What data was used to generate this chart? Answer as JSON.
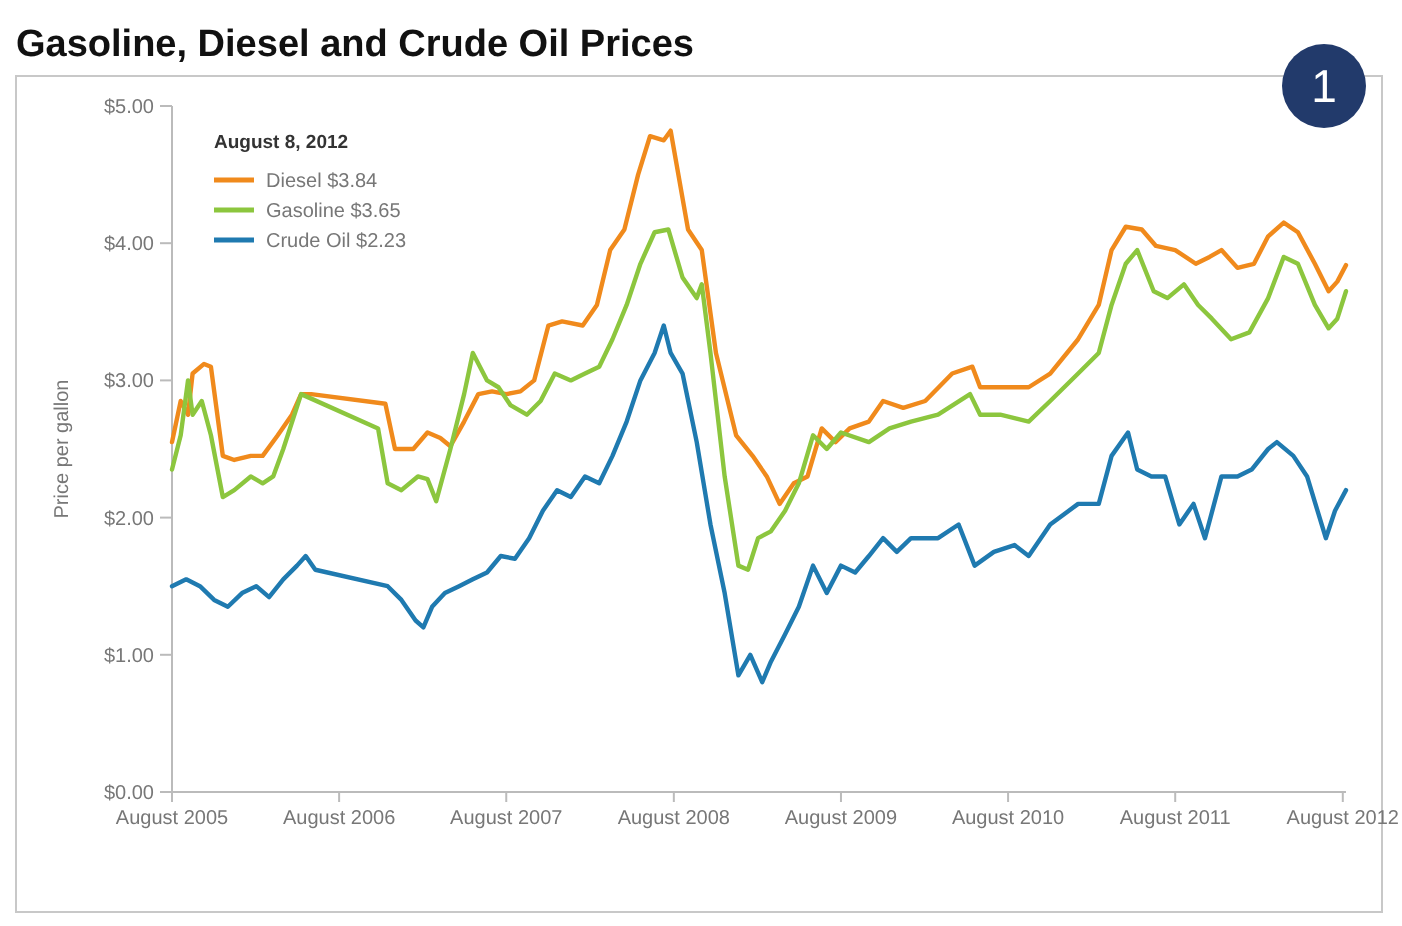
{
  "chart_data": {
    "type": "line",
    "title": "Gasoline, Diesel and Crude Oil Prices",
    "ylabel": "Price per gallon",
    "legend_title": "August 8, 2012",
    "annotations": [
      "1"
    ],
    "legend": "top left",
    "grid": false,
    "line_style": "solid",
    "marker": "none",
    "xlim": [
      "2005-08-01",
      "2012-08-08"
    ],
    "xticks": [
      {
        "value": "2005-08",
        "label": "August 2005"
      },
      {
        "value": "2006-08",
        "label": "August 2006"
      },
      {
        "value": "2007-08",
        "label": "August 2007"
      },
      {
        "value": "2008-08",
        "label": "August 2008"
      },
      {
        "value": "2009-08",
        "label": "August 2009"
      },
      {
        "value": "2010-08",
        "label": "August 2010"
      },
      {
        "value": "2011-08",
        "label": "August 2011"
      },
      {
        "value": "2012-08",
        "label": "August 2012"
      }
    ],
    "ylim": [
      0,
      5
    ],
    "yticks": [
      {
        "value": 0,
        "label": "$0.00"
      },
      {
        "value": 1,
        "label": "$1.00"
      },
      {
        "value": 2,
        "label": "$2.00"
      },
      {
        "value": 3,
        "label": "$3.00"
      },
      {
        "value": 4,
        "label": "$4.00"
      },
      {
        "value": 5,
        "label": "$5.00"
      }
    ],
    "series": [
      {
        "name": "Diesel $3.84",
        "color": "#f08a1c",
        "x": [
          "2005-08-01",
          "2005-08-20",
          "2005-09-05",
          "2005-09-15",
          "2005-10-10",
          "2005-10-25",
          "2005-11-20",
          "2005-12-15",
          "2006-01-20",
          "2006-02-15",
          "2006-03-20",
          "2006-04-20",
          "2006-05-10",
          "2006-06-01",
          "2006-11-10",
          "2006-12-01",
          "2007-01-10",
          "2007-02-10",
          "2007-03-10",
          "2007-04-01",
          "2007-05-01",
          "2007-06-01",
          "2007-07-01",
          "2007-08-01",
          "2007-09-01",
          "2007-10-01",
          "2007-11-01",
          "2007-12-01",
          "2008-01-15",
          "2008-02-15",
          "2008-03-15",
          "2008-04-15",
          "2008-05-15",
          "2008-06-10",
          "2008-07-10",
          "2008-07-25",
          "2008-09-01",
          "2008-10-01",
          "2008-11-01",
          "2008-12-15",
          "2009-01-20",
          "2009-02-20",
          "2009-03-20",
          "2009-04-20",
          "2009-05-20",
          "2009-06-20",
          "2009-07-20",
          "2009-08-20",
          "2009-10-01",
          "2009-11-01",
          "2009-12-15",
          "2010-02-01",
          "2010-04-01",
          "2010-05-15",
          "2010-06-01",
          "2010-08-01",
          "2010-09-15",
          "2010-11-01",
          "2011-01-01",
          "2011-02-15",
          "2011-03-15",
          "2011-04-15",
          "2011-05-20",
          "2011-06-20",
          "2011-08-01",
          "2011-09-15",
          "2011-10-15",
          "2011-11-10",
          "2011-12-15",
          "2012-01-20",
          "2012-02-20",
          "2012-03-25",
          "2012-04-25",
          "2012-06-01",
          "2012-07-01",
          "2012-07-20",
          "2012-08-08"
        ],
        "values": [
          2.55,
          2.85,
          2.75,
          3.05,
          3.12,
          3.1,
          2.45,
          2.42,
          2.45,
          2.45,
          2.6,
          2.75,
          2.9,
          2.9,
          2.83,
          2.5,
          2.5,
          2.62,
          2.58,
          2.52,
          2.7,
          2.9,
          2.92,
          2.9,
          2.92,
          3.0,
          3.4,
          3.43,
          3.4,
          3.55,
          3.95,
          4.1,
          4.5,
          4.78,
          4.75,
          4.82,
          4.1,
          3.95,
          3.2,
          2.6,
          2.45,
          2.3,
          2.1,
          2.25,
          2.3,
          2.65,
          2.55,
          2.65,
          2.7,
          2.85,
          2.8,
          2.85,
          3.05,
          3.1,
          2.95,
          2.95,
          2.95,
          3.05,
          3.3,
          3.55,
          3.95,
          4.12,
          4.1,
          3.98,
          3.95,
          3.85,
          3.9,
          3.95,
          3.82,
          3.85,
          4.05,
          4.15,
          4.08,
          3.85,
          3.65,
          3.72,
          3.84
        ]
      },
      {
        "name": "Gasoline $3.65",
        "color": "#8cc63e",
        "x": [
          "2005-08-01",
          "2005-08-20",
          "2005-09-05",
          "2005-09-15",
          "2005-10-05",
          "2005-10-25",
          "2005-11-20",
          "2005-12-15",
          "2006-01-20",
          "2006-02-15",
          "2006-03-10",
          "2006-04-01",
          "2006-05-10",
          "2006-10-25",
          "2006-11-15",
          "2006-12-15",
          "2007-01-20",
          "2007-02-10",
          "2007-03-01",
          "2007-04-01",
          "2007-05-01",
          "2007-05-20",
          "2007-06-20",
          "2007-07-15",
          "2007-08-10",
          "2007-09-15",
          "2007-10-15",
          "2007-11-15",
          "2007-12-20",
          "2008-01-20",
          "2008-02-20",
          "2008-03-20",
          "2008-04-20",
          "2008-05-20",
          "2008-06-20",
          "2008-07-20",
          "2008-08-20",
          "2008-09-20",
          "2008-10-01",
          "2008-10-20",
          "2008-11-20",
          "2008-12-20",
          "2009-01-10",
          "2009-02-01",
          "2009-03-01",
          "2009-04-01",
          "2009-05-01",
          "2009-06-01",
          "2009-07-01",
          "2009-08-01",
          "2009-10-01",
          "2009-11-15",
          "2010-01-01",
          "2010-03-01",
          "2010-05-10",
          "2010-06-01",
          "2010-07-15",
          "2010-09-15",
          "2010-11-01",
          "2011-01-01",
          "2011-02-15",
          "2011-03-15",
          "2011-04-15",
          "2011-05-10",
          "2011-06-15",
          "2011-07-15",
          "2011-08-20",
          "2011-09-20",
          "2011-10-20",
          "2011-12-01",
          "2012-01-10",
          "2012-02-20",
          "2012-03-25",
          "2012-04-25",
          "2012-06-01",
          "2012-07-01",
          "2012-07-20",
          "2012-08-08"
        ],
        "values": [
          2.35,
          2.6,
          3.0,
          2.75,
          2.85,
          2.6,
          2.15,
          2.2,
          2.3,
          2.25,
          2.3,
          2.5,
          2.9,
          2.65,
          2.25,
          2.2,
          2.3,
          2.28,
          2.12,
          2.5,
          2.9,
          3.2,
          3.0,
          2.95,
          2.82,
          2.75,
          2.85,
          3.05,
          3.0,
          3.05,
          3.1,
          3.3,
          3.55,
          3.85,
          4.08,
          4.1,
          3.75,
          3.6,
          3.7,
          3.2,
          2.3,
          1.65,
          1.62,
          1.85,
          1.9,
          2.05,
          2.25,
          2.6,
          2.5,
          2.62,
          2.55,
          2.65,
          2.7,
          2.75,
          2.9,
          2.75,
          2.75,
          2.7,
          2.85,
          3.05,
          3.2,
          3.55,
          3.85,
          3.95,
          3.65,
          3.6,
          3.7,
          3.55,
          3.45,
          3.3,
          3.35,
          3.6,
          3.9,
          3.85,
          3.55,
          3.38,
          3.45,
          3.65
        ]
      },
      {
        "name": "Crude Oil $2.23",
        "color": "#1f7ab0",
        "x": [
          "2005-08-01",
          "2005-09-01",
          "2005-10-01",
          "2005-11-01",
          "2005-12-01",
          "2006-01-01",
          "2006-02-01",
          "2006-03-01",
          "2006-04-01",
          "2006-05-01",
          "2006-05-20",
          "2006-06-10",
          "2006-11-15",
          "2006-12-15",
          "2007-01-15",
          "2007-02-01",
          "2007-02-20",
          "2007-03-20",
          "2007-04-20",
          "2007-05-20",
          "2007-06-20",
          "2007-07-20",
          "2007-08-20",
          "2007-09-20",
          "2007-10-20",
          "2007-11-20",
          "2007-12-20",
          "2008-01-20",
          "2008-02-20",
          "2008-03-20",
          "2008-04-20",
          "2008-05-20",
          "2008-06-20",
          "2008-07-10",
          "2008-07-25",
          "2008-08-20",
          "2008-09-20",
          "2008-10-20",
          "2008-11-20",
          "2008-12-20",
          "2009-01-15",
          "2009-02-10",
          "2009-03-01",
          "2009-04-01",
          "2009-05-01",
          "2009-06-01",
          "2009-07-01",
          "2009-08-01",
          "2009-09-01",
          "2009-10-01",
          "2009-11-01",
          "2009-12-01",
          "2010-01-01",
          "2010-03-01",
          "2010-04-15",
          "2010-05-20",
          "2010-07-01",
          "2010-08-15",
          "2010-09-15",
          "2010-11-01",
          "2011-01-01",
          "2011-02-15",
          "2011-03-15",
          "2011-04-20",
          "2011-05-10",
          "2011-06-10",
          "2011-07-10",
          "2011-08-10",
          "2011-09-10",
          "2011-10-05",
          "2011-11-10",
          "2011-12-15",
          "2012-01-15",
          "2012-02-20",
          "2012-03-10",
          "2012-04-15",
          "2012-05-15",
          "2012-06-25",
          "2012-07-15",
          "2012-08-08"
        ],
        "values": [
          1.5,
          1.55,
          1.5,
          1.4,
          1.35,
          1.45,
          1.5,
          1.42,
          1.55,
          1.65,
          1.72,
          1.62,
          1.5,
          1.4,
          1.25,
          1.2,
          1.35,
          1.45,
          1.5,
          1.55,
          1.6,
          1.72,
          1.7,
          1.85,
          2.05,
          2.2,
          2.15,
          2.3,
          2.25,
          2.45,
          2.7,
          3.0,
          3.2,
          3.4,
          3.2,
          3.05,
          2.55,
          1.95,
          1.45,
          0.85,
          1.0,
          0.8,
          0.95,
          1.15,
          1.35,
          1.65,
          1.45,
          1.65,
          1.6,
          1.72,
          1.85,
          1.75,
          1.85,
          1.85,
          1.95,
          1.65,
          1.75,
          1.8,
          1.72,
          1.95,
          2.1,
          2.1,
          2.45,
          2.62,
          2.35,
          2.3,
          2.3,
          1.95,
          2.1,
          1.85,
          2.3,
          2.3,
          2.35,
          2.5,
          2.55,
          2.45,
          2.3,
          1.85,
          2.05,
          2.2
        ]
      }
    ]
  }
}
